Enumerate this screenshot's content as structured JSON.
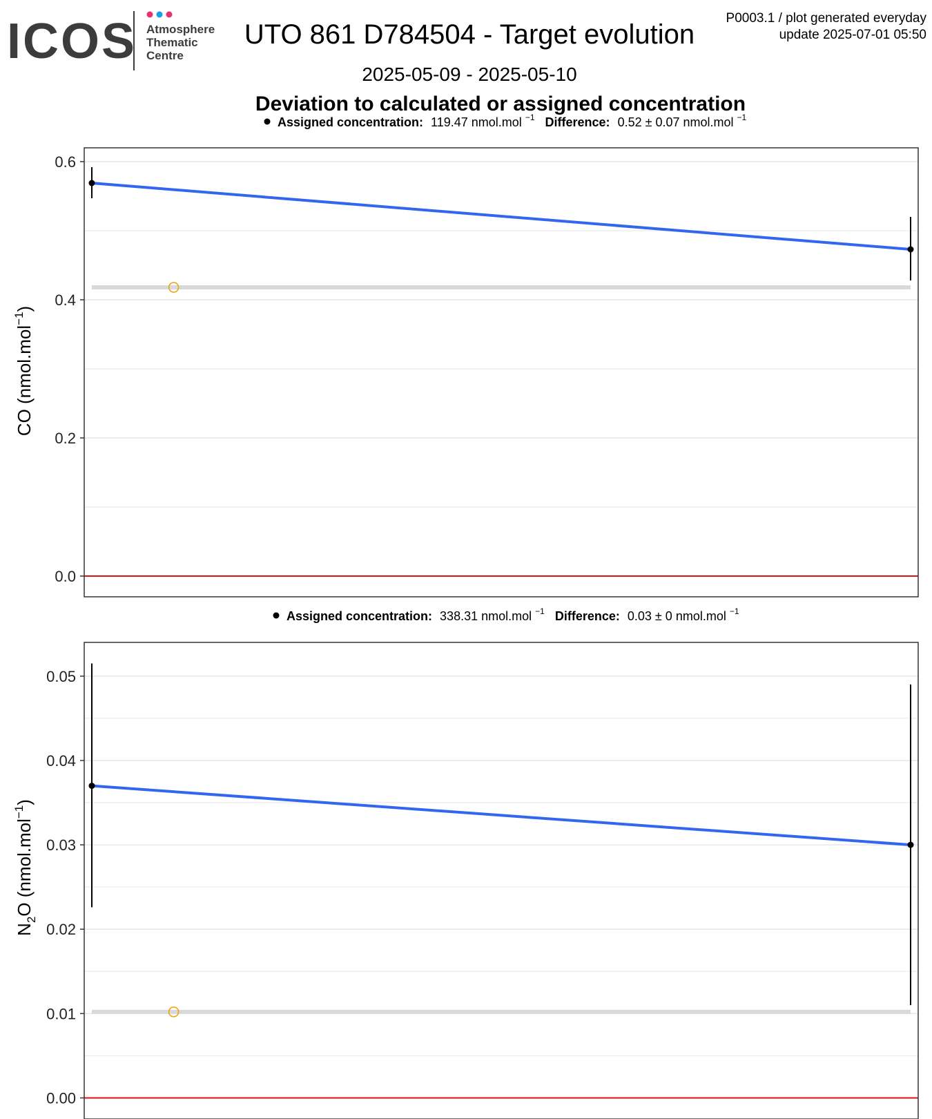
{
  "header": {
    "logo_text": "ICOS",
    "logo_sub": [
      "Atmosphere",
      "Thematic",
      "Centre"
    ],
    "logo_dot_colors": [
      "#e6326e",
      "#1aa0e6",
      "#e6326e"
    ],
    "title": "UTO 861 D784504 - Target evolution",
    "date_range": "2025-05-09 - 2025-05-10",
    "plot_id": "P0003.1 / plot generated everyday",
    "update": "update  2025-07-01 05:50",
    "section_title": "Deviation to calculated or assigned concentration"
  },
  "colors": {
    "trend_line": "#3366ee",
    "zero_line": "#dd1111",
    "reference_band": "#d9d9d9",
    "open_marker": "#f0a000",
    "grid": "#e6e6e6"
  },
  "chart_data": [
    {
      "type": "line",
      "ylabel_main": "CO (nmol.mol",
      "ylabel_sup": "−1",
      "ylabel_end": ")",
      "subtitle": {
        "assigned_label": "Assigned concentration:",
        "assigned_value": "119.47 nmol.mol",
        "difference_label": "Difference:",
        "difference_value": "0.52 ± 0.07 nmol.mol",
        "unit_sup": "−1"
      },
      "ylim": [
        -0.03,
        0.62
      ],
      "yticks": [
        0.0,
        0.2,
        0.4,
        0.6
      ],
      "ytick_labels": [
        "0.0",
        "0.2",
        "0.4",
        "0.6"
      ],
      "yminor": [
        0.1,
        0.3,
        0.5
      ],
      "points": [
        {
          "x": 0,
          "y": 0.569,
          "err_low": 0.547,
          "err_high": 0.592
        },
        {
          "x": 1,
          "y": 0.473,
          "err_low": 0.428,
          "err_high": 0.52
        }
      ],
      "reference_level": 0.418,
      "reference_marker_x": 0.1
    },
    {
      "type": "line",
      "ylabel_main": "N",
      "ylabel_sub": "2",
      "ylabel_main2": "O (nmol.mol",
      "ylabel_sup": "−1",
      "ylabel_end": ")",
      "subtitle": {
        "assigned_label": "Assigned concentration:",
        "assigned_value": "338.31 nmol.mol",
        "difference_label": "Difference:",
        "difference_value": "0.03 ± 0 nmol.mol",
        "unit_sup": "−1"
      },
      "ylim": [
        -0.0025,
        0.054
      ],
      "yticks": [
        0.0,
        0.01,
        0.02,
        0.03,
        0.04,
        0.05
      ],
      "ytick_labels": [
        "0.00",
        "0.01",
        "0.02",
        "0.03",
        "0.04",
        "0.05"
      ],
      "yminor": [
        0.005,
        0.015,
        0.025,
        0.035,
        0.045
      ],
      "points": [
        {
          "x": 0,
          "y": 0.037,
          "err_low": 0.0226,
          "err_high": 0.0515
        },
        {
          "x": 1,
          "y": 0.03,
          "err_low": 0.011,
          "err_high": 0.049
        }
      ],
      "reference_level": 0.0102,
      "reference_marker_x": 0.1
    }
  ]
}
